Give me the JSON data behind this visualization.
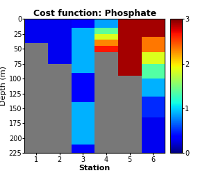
{
  "title": "Cost function: Phosphate",
  "xlabel": "Station",
  "ylabel": "Depth (m)",
  "yticks": [
    0,
    25,
    50,
    75,
    100,
    125,
    150,
    175,
    200,
    225
  ],
  "xticks": [
    1,
    2,
    3,
    4,
    5,
    6
  ],
  "colorbar_ticks": [
    0,
    1,
    2,
    3
  ],
  "vmin": 0,
  "vmax": 3,
  "colormap": "jet",
  "nan_color": "#787878",
  "depths": [
    0,
    5,
    10,
    15,
    20,
    25,
    30,
    35,
    40,
    45,
    50,
    55,
    60,
    65,
    70,
    75,
    80,
    85,
    90,
    95,
    100,
    105,
    110,
    115,
    120,
    125,
    130,
    135,
    140,
    145,
    150,
    155,
    160,
    165,
    170,
    175,
    180,
    185,
    190,
    195,
    200,
    205,
    210,
    215,
    220,
    225
  ],
  "station_data": [
    {
      "max_depth": 40,
      "segments": [
        {
          "d0": 0,
          "d1": 40,
          "v": 0.3
        }
      ]
    },
    {
      "max_depth": 75,
      "segments": [
        {
          "d0": 0,
          "d1": 75,
          "v": 0.3
        }
      ]
    },
    {
      "max_depth": 225,
      "segments": [
        {
          "d0": 0,
          "d1": 15,
          "v": 0.35
        },
        {
          "d0": 15,
          "d1": 90,
          "v": 0.9
        },
        {
          "d0": 90,
          "d1": 140,
          "v": 0.35
        },
        {
          "d0": 140,
          "d1": 210,
          "v": 0.9
        },
        {
          "d0": 210,
          "d1": 225,
          "v": 0.35
        }
      ]
    },
    {
      "max_depth": 55,
      "segments": [
        {
          "d0": 0,
          "d1": 15,
          "v": 0.85
        },
        {
          "d0": 15,
          "d1": 25,
          "v": 1.4
        },
        {
          "d0": 25,
          "d1": 35,
          "v": 1.85
        },
        {
          "d0": 35,
          "d1": 45,
          "v": 2.3
        },
        {
          "d0": 45,
          "d1": 55,
          "v": 2.65
        }
      ]
    },
    {
      "max_depth": 95,
      "segments": [
        {
          "d0": 0,
          "d1": 95,
          "v": 2.9
        }
      ]
    },
    {
      "max_depth": 225,
      "segments": [
        {
          "d0": 0,
          "d1": 30,
          "v": 2.9
        },
        {
          "d0": 30,
          "d1": 55,
          "v": 2.35
        },
        {
          "d0": 55,
          "d1": 75,
          "v": 1.85
        },
        {
          "d0": 75,
          "d1": 100,
          "v": 1.35
        },
        {
          "d0": 100,
          "d1": 130,
          "v": 0.9
        },
        {
          "d0": 130,
          "d1": 165,
          "v": 0.5
        },
        {
          "d0": 165,
          "d1": 225,
          "v": 0.3
        }
      ]
    }
  ]
}
